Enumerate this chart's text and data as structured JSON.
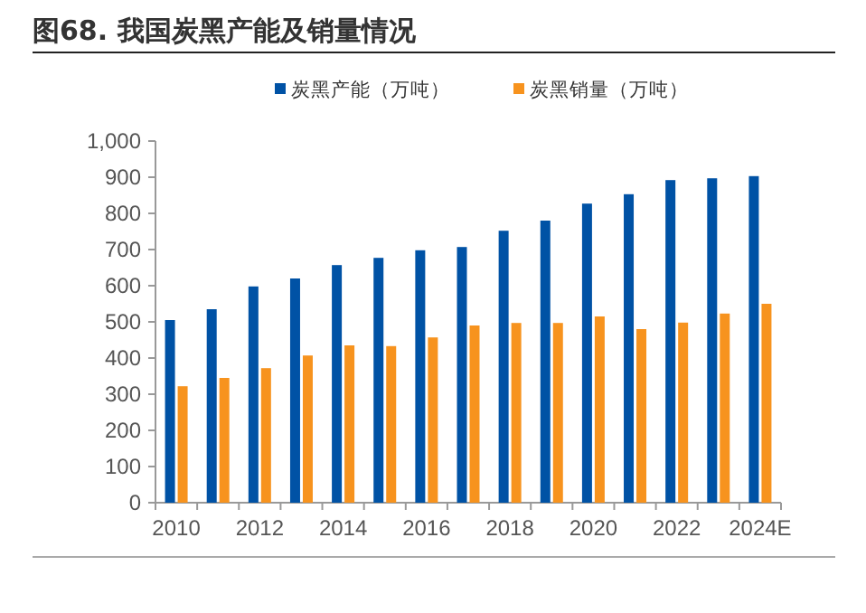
{
  "chart_data": {
    "type": "bar",
    "title": "图68. 我国炭黑产能及销量情况",
    "categories": [
      "2010",
      null,
      "2012",
      null,
      "2014",
      null,
      "2016",
      null,
      "2018",
      null,
      "2020",
      null,
      "2022",
      null,
      "2024E"
    ],
    "series": [
      {
        "name": "炭黑产能（万吨）",
        "color": "#0052a5",
        "values": [
          505,
          535,
          598,
          620,
          657,
          677,
          698,
          707,
          752,
          780,
          827,
          853,
          892,
          897,
          903
        ]
      },
      {
        "name": "炭黑销量（万吨）",
        "color": "#f7931e",
        "values": [
          322,
          345,
          372,
          407,
          435,
          433,
          457,
          490,
          497,
          497,
          515,
          480,
          498,
          523,
          550
        ]
      }
    ],
    "ylim": [
      0,
      1000
    ],
    "yticks": [
      0,
      100,
      200,
      300,
      400,
      500,
      600,
      700,
      800,
      900,
      {
        "value": 1000,
        "label": "1,000"
      }
    ],
    "legend": "top",
    "grid": false
  }
}
